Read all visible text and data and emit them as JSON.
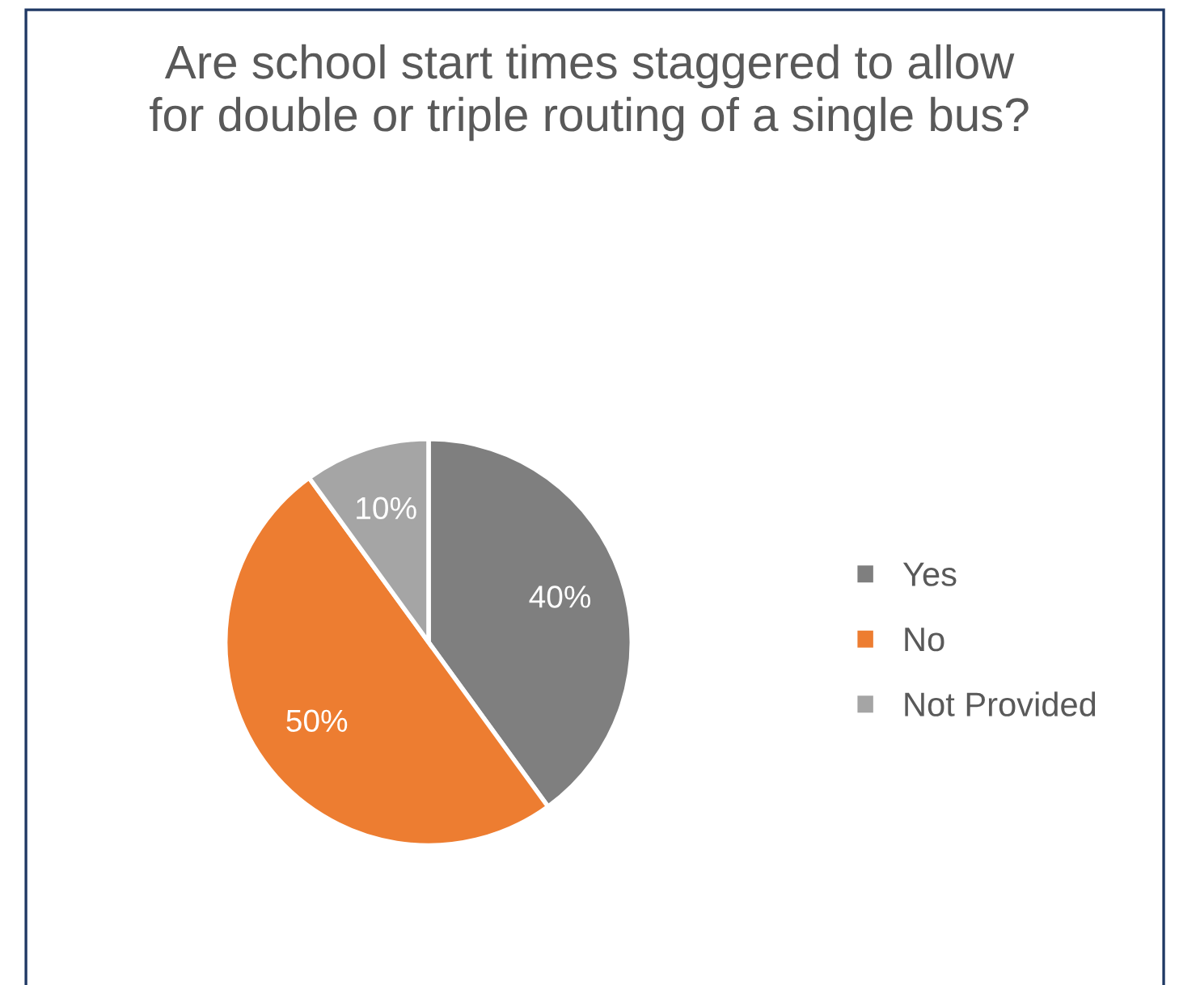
{
  "chart_data": {
    "type": "pie",
    "title": "Are school start times staggered to allow for double or triple routing of a single bus?",
    "categories": [
      "Yes",
      "No",
      "Not Provided"
    ],
    "values": [
      40,
      50,
      10
    ],
    "colors": [
      "#7f7f7f",
      "#ed7d31",
      "#a5a5a5"
    ],
    "value_labels": [
      "40%",
      "50%",
      "10%"
    ],
    "data_labels": true,
    "legend": "right"
  }
}
